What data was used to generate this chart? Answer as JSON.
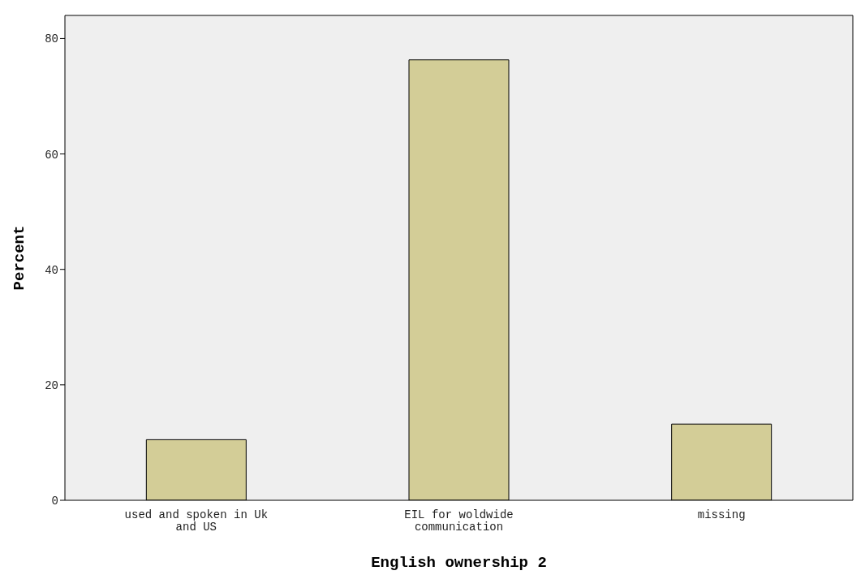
{
  "chart_data": {
    "type": "bar",
    "categories": [
      "used and spoken in Uk and US",
      "EIL for woldwide communication",
      "missing"
    ],
    "values": [
      10.5,
      76.3,
      13.2
    ],
    "color": "#d3cd97",
    "xlabel": "English ownership 2",
    "ylabel": "Percent",
    "ylim": [
      0,
      84
    ],
    "yticks": [
      0,
      20,
      40,
      60,
      80
    ],
    "grid": false
  }
}
